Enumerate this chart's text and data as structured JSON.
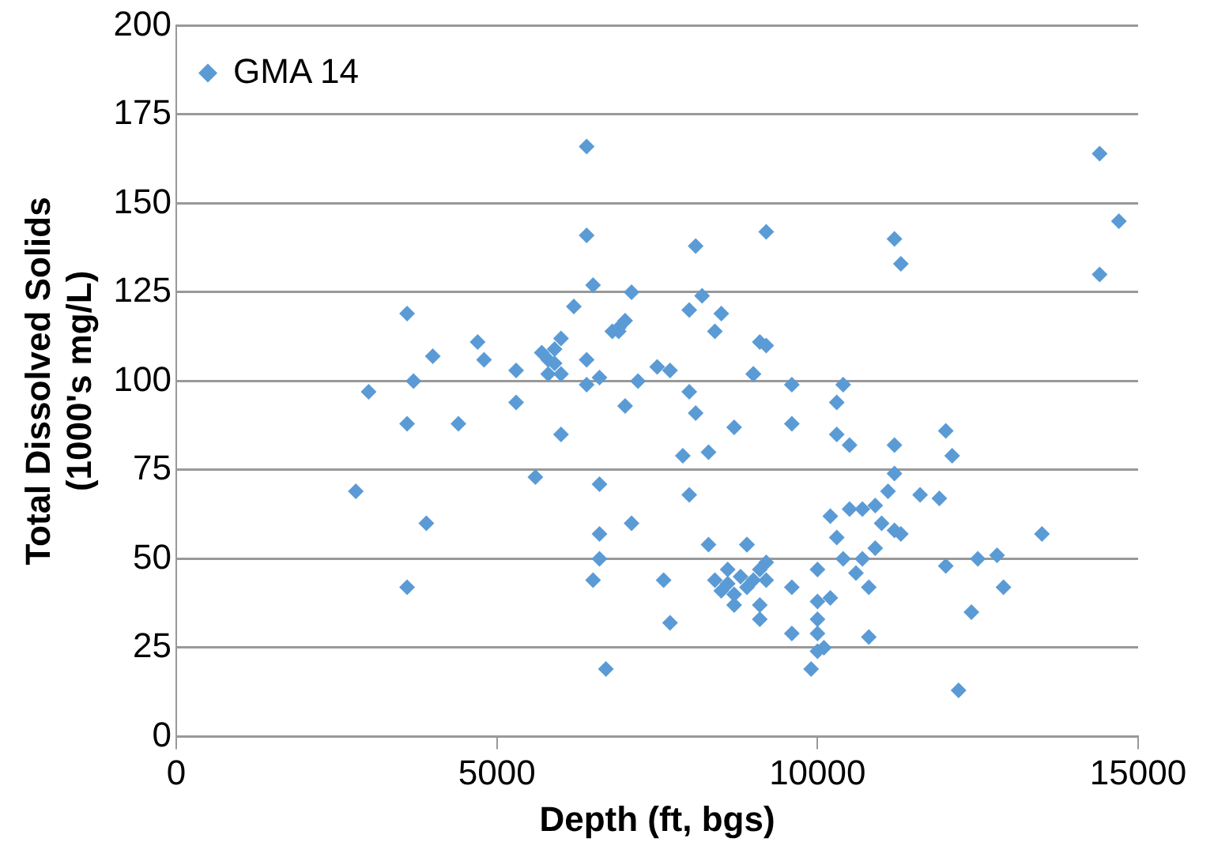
{
  "chart_data": {
    "type": "scatter",
    "xlabel": "Depth (ft, bgs)",
    "ylabel": "Total Dissolved Solids\n(1000's mg/L)",
    "xlim": [
      0,
      15000
    ],
    "xticks": [
      0,
      5000,
      10000,
      15000
    ],
    "ylim": [
      0,
      200
    ],
    "yticks": [
      0,
      25,
      50,
      75,
      100,
      125,
      150,
      175,
      200
    ],
    "grid": "y",
    "legend": "top left",
    "marker": "diamond",
    "series": [
      {
        "name": "GMA 14",
        "color": "#5b9bd5",
        "x": [
          2800,
          3000,
          3600,
          3600,
          3600,
          3700,
          3900,
          4000,
          4400,
          4700,
          4800,
          5300,
          5300,
          5600,
          5700,
          5800,
          5900,
          5800,
          6000,
          5900,
          6000,
          6000,
          6200,
          6500,
          6400,
          6400,
          6600,
          6600,
          6800,
          6900,
          7000,
          6900,
          7100,
          7200,
          7000,
          7500,
          7700,
          8000,
          8100,
          8000,
          8200,
          8400,
          8500,
          8700,
          8300,
          7900,
          8000,
          9000,
          9100,
          9200,
          9000,
          9600,
          10400,
          10300,
          9600,
          10300,
          10500,
          11200,
          12000,
          12100,
          11200,
          11100,
          11600,
          11900,
          10900,
          10500,
          10700,
          10200,
          11000,
          11200,
          11300,
          10300,
          13500,
          8900,
          10900,
          10400,
          10700,
          12000,
          12500,
          12800,
          10600,
          10800,
          10000,
          9600,
          12900,
          12400,
          9100,
          9100,
          10000,
          10200,
          10000,
          9600,
          10800,
          10000,
          10000,
          10100,
          9900,
          12200,
          6600,
          6600,
          6500,
          7100,
          7600,
          7700,
          6700,
          8300,
          8900,
          8400,
          8500,
          8600,
          8700,
          8800,
          8900,
          9000,
          9100,
          9200,
          8700,
          8600,
          9200,
          6400,
          6400,
          8100,
          9200,
          11200,
          11300,
          14400,
          14700,
          14400
        ],
        "values": [
          69,
          97,
          119,
          88,
          42,
          100,
          60,
          107,
          88,
          111,
          106,
          103,
          94,
          73,
          108,
          106,
          105,
          102,
          102,
          109,
          112,
          85,
          121,
          127,
          106,
          99,
          101,
          71,
          114,
          115,
          117,
          114,
          125,
          100,
          93,
          104,
          103,
          97,
          91,
          120,
          124,
          114,
          119,
          87,
          80,
          79,
          68,
          102,
          111,
          110,
          102,
          99,
          99,
          94,
          88,
          85,
          82,
          82,
          86,
          79,
          74,
          69,
          68,
          67,
          65,
          64,
          64,
          62,
          60,
          58,
          57,
          56,
          57,
          54,
          53,
          50,
          50,
          48,
          50,
          51,
          46,
          42,
          47,
          42,
          42,
          35,
          37,
          33,
          38,
          39,
          33,
          29,
          28,
          29,
          24,
          25,
          19,
          13,
          57,
          50,
          44,
          60,
          44,
          32,
          19,
          54,
          54,
          44,
          41,
          43,
          40,
          45,
          42,
          44,
          47,
          49,
          37,
          47,
          44,
          166,
          141,
          138,
          142,
          140,
          133,
          164,
          145,
          130
        ]
      }
    ]
  }
}
